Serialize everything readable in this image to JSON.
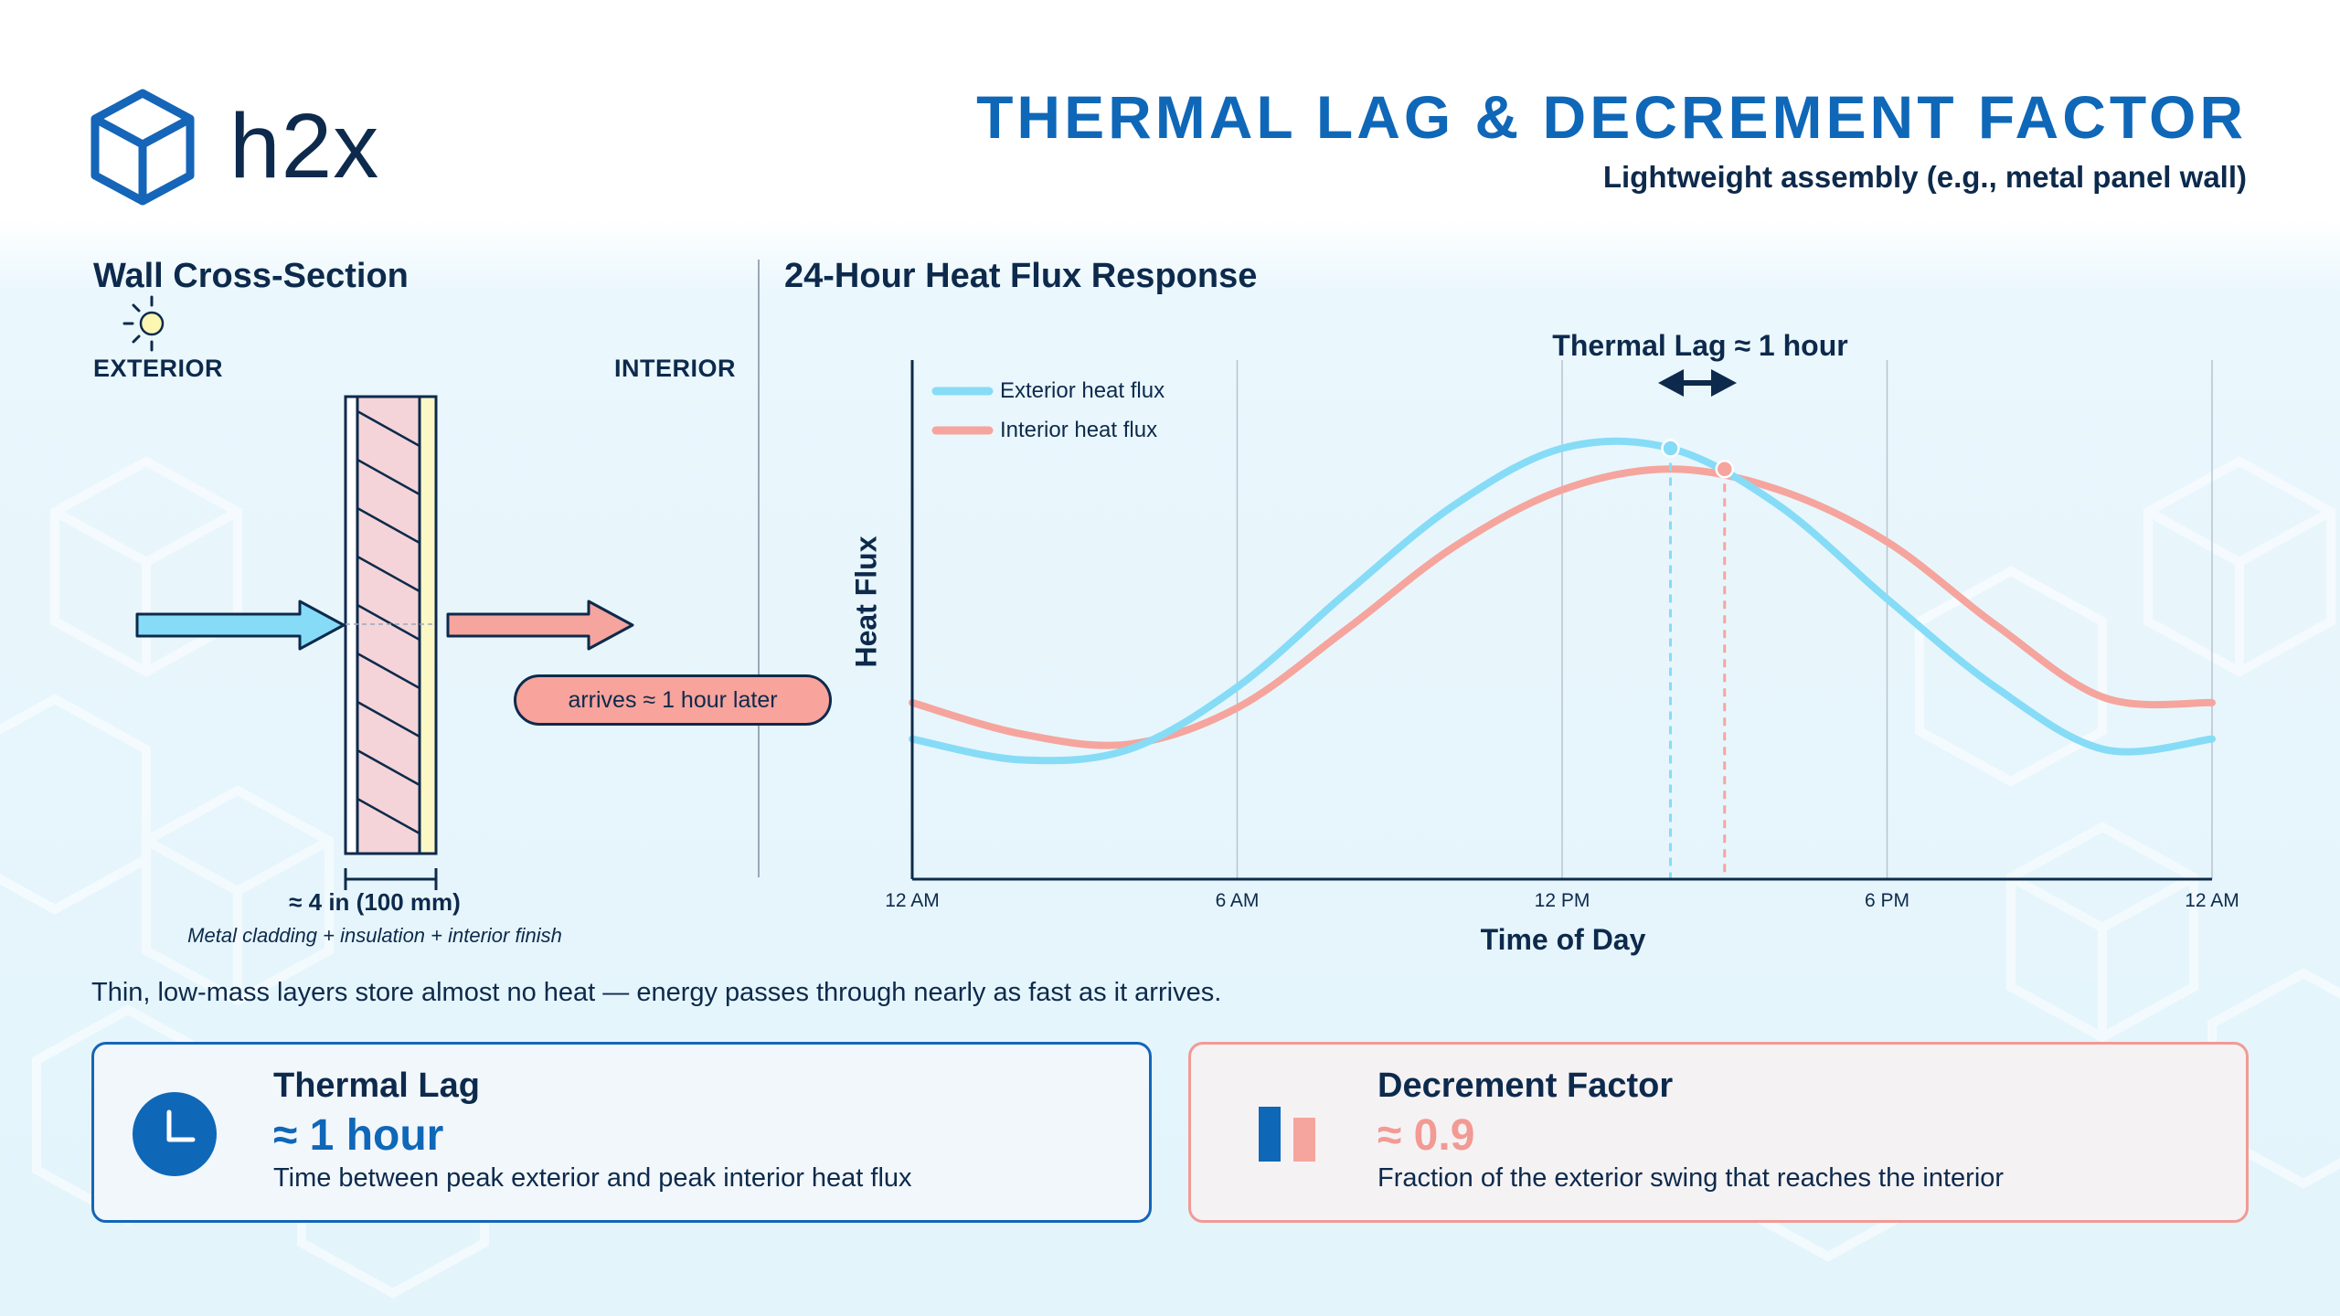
{
  "brand": {
    "name": "h2x"
  },
  "header": {
    "title": "THERMAL LAG & DECREMENT FACTOR",
    "subtitle": "Lightweight assembly (e.g., metal panel wall)"
  },
  "wall_section": {
    "title": "Wall Cross-Section",
    "exterior_label": "EXTERIOR",
    "interior_label": "INTERIOR",
    "arrives_label": "arrives ≈ 1 hour later",
    "thickness_label": "≈ 4 in (100 mm)",
    "layers_label": "Metal cladding + insulation + interior finish",
    "caption": "Thin, low-mass layers store almost no heat — energy passes through nearly as fast as it arrives.",
    "icons": {
      "sun": "sun-icon",
      "in_arrow": "heat-in-arrow-icon",
      "out_arrow": "heat-out-arrow-icon"
    }
  },
  "chart_section": {
    "title": "24-Hour Heat Flux Response"
  },
  "chart_data": {
    "type": "line",
    "xlabel": "Time of Day",
    "ylabel": "Heat Flux",
    "xlim": [
      0,
      24
    ],
    "ylim": [
      0,
      1
    ],
    "x_ticks": [
      0,
      6,
      12,
      18,
      24
    ],
    "x_tick_labels": [
      "12 AM",
      "6 AM",
      "12 PM",
      "6 PM",
      "12 AM"
    ],
    "grid": true,
    "legend_position": "top-left",
    "series": [
      {
        "name": "Exterior heat flux",
        "color": "#86dcf6",
        "x": [
          0,
          2,
          4,
          6,
          8,
          10,
          12,
          14,
          16,
          18,
          20,
          22,
          24
        ],
        "y": [
          0.27,
          0.23,
          0.25,
          0.37,
          0.55,
          0.72,
          0.83,
          0.83,
          0.72,
          0.54,
          0.37,
          0.25,
          0.27
        ],
        "peak": {
          "x": 14,
          "y": 0.83
        }
      },
      {
        "name": "Interior heat flux",
        "color": "#f5a59d",
        "x": [
          0,
          2,
          4,
          6,
          8,
          10,
          12,
          14,
          16,
          18,
          20,
          22,
          24
        ],
        "y": [
          0.34,
          0.28,
          0.26,
          0.33,
          0.48,
          0.64,
          0.75,
          0.79,
          0.75,
          0.65,
          0.49,
          0.35,
          0.34
        ],
        "peak": {
          "x": 15,
          "y": 0.79
        }
      }
    ],
    "annotations": [
      {
        "label": "Thermal Lag ≈ 1 hour",
        "from_x": 14,
        "to_x": 15
      }
    ]
  },
  "cards": {
    "lag": {
      "title": "Thermal Lag",
      "value": "≈ 1 hour",
      "description": "Time between peak exterior and peak interior heat flux",
      "icon": "clock-icon",
      "value_color": "#0f67b8"
    },
    "decrement": {
      "title": "Decrement Factor",
      "value": "≈ 0.9",
      "description": "Fraction of the exterior swing that reaches the interior",
      "icon": "bar-comparison-icon",
      "value_color": "#f29a94"
    }
  }
}
